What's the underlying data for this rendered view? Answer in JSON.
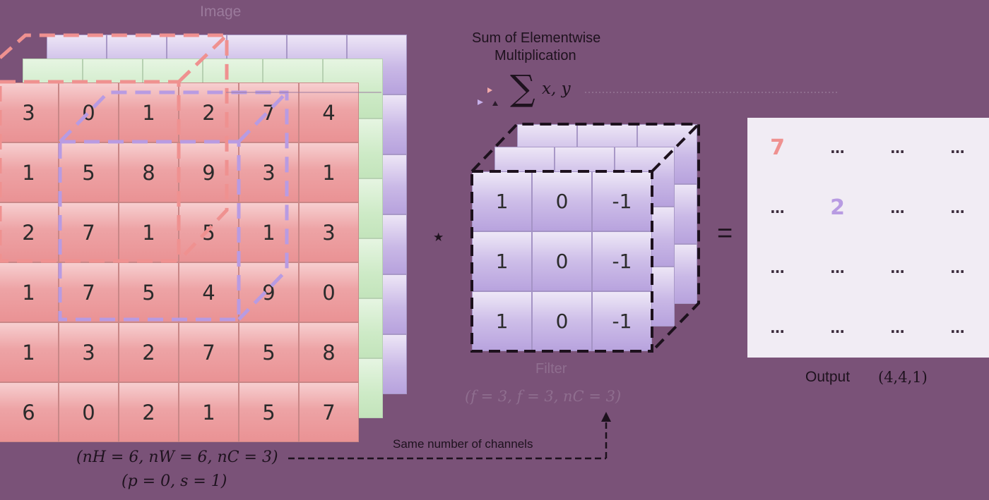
{
  "image": {
    "title": "Image",
    "red_channel": [
      [
        "3",
        "0",
        "1",
        "2",
        "7",
        "4"
      ],
      [
        "1",
        "5",
        "8",
        "9",
        "3",
        "1"
      ],
      [
        "2",
        "7",
        "1",
        "5",
        "1",
        "3"
      ],
      [
        "1",
        "7",
        "5",
        "4",
        "9",
        "0"
      ],
      [
        "1",
        "3",
        "2",
        "7",
        "5",
        "8"
      ],
      [
        "6",
        "0",
        "2",
        "1",
        "5",
        "7"
      ]
    ],
    "dims": "(nH = 6, nW = 6, nC = 3)",
    "params": "(p = 0, s = 1)"
  },
  "operation": {
    "title_line1": "Sum of Elementwise",
    "title_line2": "Multiplication",
    "formula": "x, y",
    "sigma": "∑",
    "convolve_symbol": "⋆",
    "equals_symbol": "="
  },
  "filter": {
    "title": "Filter",
    "front_channel": [
      [
        "1",
        "0",
        "-1"
      ],
      [
        "1",
        "0",
        "-1"
      ],
      [
        "1",
        "0",
        "-1"
      ]
    ],
    "dims": "(f = 3, f = 3, nC = 3)"
  },
  "channels_note": "Same number of channels",
  "output": {
    "cells": [
      [
        "7",
        "…",
        "…",
        "…"
      ],
      [
        "…",
        "2",
        "…",
        "…"
      ],
      [
        "…",
        "…",
        "…",
        "…"
      ],
      [
        "…",
        "…",
        "…",
        "…"
      ]
    ],
    "label": "Output",
    "dims": "(4,4,1)"
  },
  "colors": {
    "background": "#7a5278",
    "red_channel": "#ec9c9e",
    "green_channel": "#cdeac6",
    "blue_channel": "#c9b8e6",
    "highlight_red": "#ef9190",
    "highlight_purple": "#b89be2",
    "output_bg": "#f1ecf4"
  }
}
